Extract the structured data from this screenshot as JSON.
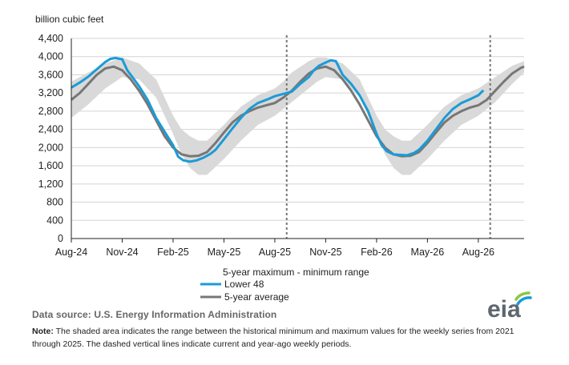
{
  "chart_data": {
    "type": "line",
    "ylabel": "billion cubic feet",
    "ylim": [
      0,
      4400
    ],
    "yticks": [
      0,
      400,
      800,
      1200,
      1600,
      2000,
      2400,
      2800,
      3200,
      3600,
      4000,
      4400
    ],
    "ytick_labels": [
      "0",
      "400",
      "800",
      "1,200",
      "1,600",
      "2,000",
      "2,400",
      "2,800",
      "3,200",
      "3,600",
      "4,000",
      "4,400"
    ],
    "x_months_range": [
      0,
      26.7
    ],
    "x_ticks": [
      {
        "label": "Aug-24",
        "month": 0
      },
      {
        "label": "Nov-24",
        "month": 3
      },
      {
        "label": "Feb-25",
        "month": 6
      },
      {
        "label": "May-25",
        "month": 9
      },
      {
        "label": "Aug-25",
        "month": 12
      },
      {
        "label": "Nov-25",
        "month": 15
      },
      {
        "label": "Feb-26",
        "month": 18
      },
      {
        "label": "May-26",
        "month": 21
      },
      {
        "label": "Aug-26",
        "month": 24
      }
    ],
    "vlines_month": [
      12.7,
      24.7
    ],
    "range_legend": "5-year maximum - minimum range",
    "range": {
      "month": [
        0,
        1,
        2,
        3,
        4,
        5,
        6,
        6.5,
        7,
        7.5,
        8,
        9,
        10,
        11,
        12,
        12.5,
        13,
        14,
        14.5,
        15,
        16,
        17,
        18,
        18.5,
        19,
        19.5,
        20,
        21,
        22,
        23,
        24,
        25,
        26,
        26.7
      ],
      "max": [
        3450,
        3650,
        3850,
        3980,
        3850,
        3500,
        2700,
        2400,
        2250,
        2150,
        2150,
        2500,
        2900,
        3150,
        3300,
        3450,
        3650,
        3900,
        3980,
        3980,
        3850,
        3500,
        2700,
        2400,
        2250,
        2150,
        2150,
        2500,
        2900,
        3150,
        3300,
        3550,
        3800,
        3900
      ],
      "min": [
        2650,
        2950,
        3300,
        3550,
        3500,
        3100,
        2300,
        1850,
        1550,
        1400,
        1400,
        1750,
        2150,
        2500,
        2700,
        2850,
        3000,
        3300,
        3450,
        3550,
        3500,
        3100,
        2300,
        1850,
        1550,
        1400,
        1400,
        1750,
        2150,
        2500,
        2700,
        3000,
        3400,
        3650
      ]
    },
    "series": [
      {
        "name": "Lower 48",
        "color": "#1a9bd7",
        "x": [
          0,
          0.5,
          1,
          1.5,
          2,
          2.3,
          2.6,
          3,
          3.3,
          3.7,
          4,
          4.5,
          5,
          5.5,
          6,
          6.3,
          6.6,
          7,
          7.4,
          7.8,
          8.2,
          8.5,
          9,
          9.5,
          10,
          10.5,
          11,
          11.5,
          12,
          12.5,
          13,
          13.5,
          14,
          14.3,
          14.6,
          15,
          15.3,
          15.6,
          16,
          16.5,
          17,
          17.5,
          18,
          18.3,
          18.6,
          19,
          19.4,
          19.8,
          20.2,
          20.5,
          21,
          21.5,
          22,
          22.5,
          23,
          23.5,
          24,
          24.3
        ],
        "values": [
          3320,
          3430,
          3560,
          3720,
          3880,
          3950,
          3970,
          3940,
          3700,
          3500,
          3350,
          3050,
          2650,
          2350,
          2050,
          1800,
          1720,
          1690,
          1720,
          1780,
          1860,
          1950,
          2180,
          2420,
          2650,
          2850,
          2980,
          3050,
          3130,
          3180,
          3230,
          3400,
          3550,
          3700,
          3800,
          3870,
          3920,
          3900,
          3600,
          3400,
          3150,
          2800,
          2300,
          2050,
          1920,
          1850,
          1840,
          1830,
          1880,
          1950,
          2150,
          2400,
          2650,
          2850,
          2980,
          3060,
          3150,
          3260
        ]
      },
      {
        "name": "5-year average",
        "color": "#777777",
        "x": [
          0,
          0.5,
          1,
          1.5,
          2,
          2.5,
          3,
          3.5,
          4,
          4.5,
          5,
          5.5,
          6,
          6.5,
          7,
          7.5,
          8,
          8.5,
          9,
          9.5,
          10,
          10.5,
          11,
          11.5,
          12,
          12.5,
          13,
          13.5,
          14,
          14.5,
          15,
          15.5,
          16,
          16.5,
          17,
          17.5,
          18,
          18.5,
          19,
          19.5,
          20,
          20.5,
          21,
          21.5,
          22,
          22.5,
          23,
          23.5,
          24,
          24.5,
          25,
          25.5,
          26,
          26.5,
          26.7
        ],
        "values": [
          3050,
          3200,
          3400,
          3600,
          3740,
          3780,
          3700,
          3500,
          3250,
          2950,
          2600,
          2250,
          2000,
          1850,
          1810,
          1820,
          1900,
          2100,
          2330,
          2550,
          2700,
          2800,
          2880,
          2930,
          2980,
          3100,
          3250,
          3450,
          3630,
          3740,
          3780,
          3700,
          3500,
          3250,
          2950,
          2600,
          2250,
          2000,
          1850,
          1810,
          1820,
          1900,
          2100,
          2330,
          2550,
          2700,
          2800,
          2880,
          2930,
          3050,
          3250,
          3450,
          3630,
          3750,
          3780
        ]
      }
    ],
    "legend_position": "bottom-center"
  },
  "footer": {
    "source": "Data source:  U.S. Energy Information Administration",
    "note_label": "Note:",
    "note_text": " The shaded area indicates the range between the historical minimum and maximum values for the weekly series from 2021 through 2025. The dashed vertical lines indicate current and year-ago weekly periods."
  },
  "logo": {
    "text": "eia",
    "colors": {
      "text": "#5e6670",
      "arc_blue": "#1a9bd7",
      "arc_green": "#8dc63f"
    }
  }
}
